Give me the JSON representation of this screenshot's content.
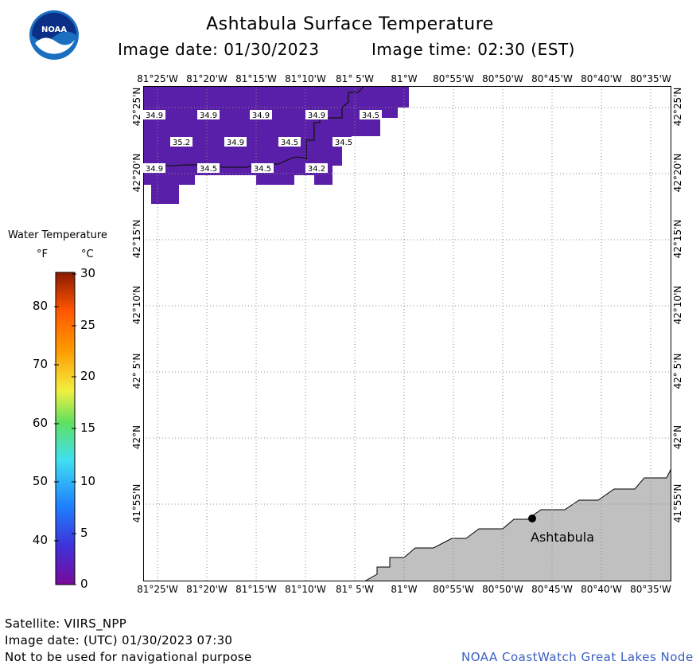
{
  "header": {
    "title": "Ashtabula Surface Temperature",
    "image_date": "Image date: 01/30/2023",
    "image_time": "Image time: 02:30 (EST)"
  },
  "logo": {
    "text": "NOAA",
    "colors": {
      "outer": "#1a6fc0",
      "inner": "#0b2f86"
    }
  },
  "map": {
    "lon_ticks": [
      "81°25'W",
      "81°20'W",
      "81°15'W",
      "81°10'W",
      "81° 5'W",
      "81°W",
      "80°55'W",
      "80°50'W",
      "80°45'W",
      "80°40'W",
      "80°35'W"
    ],
    "lat_ticks": [
      "42°25'N",
      "42°20'N",
      "42°15'N",
      "42°10'N",
      "42° 5'N",
      "42°N",
      "41°55'N"
    ],
    "city": "Ashtabula",
    "land_color": "#c0c0c0",
    "water_color": "#5a1fa8",
    "temperature_labels": [
      "34.9",
      "34.9",
      "34.9",
      "34.9",
      "34.5",
      "35.2",
      "34.9",
      "34.5",
      "34.5",
      "34.9",
      "34.5",
      "34.5",
      "34.2"
    ]
  },
  "legend": {
    "title": "Water Temperature",
    "unit_f": "°F",
    "unit_c": "°C",
    "f_ticks": [
      "80",
      "70",
      "60",
      "50",
      "40"
    ],
    "c_ticks": [
      "30",
      "25",
      "20",
      "15",
      "10",
      "5",
      "0"
    ],
    "colors": [
      "#6a0a9a",
      "#3b3be6",
      "#1f8fff",
      "#40e0f0",
      "#60e060",
      "#f0f040",
      "#ff9a00",
      "#ff5500",
      "#8a1a00"
    ]
  },
  "footer": {
    "satellite": "Satellite: VIIRS_NPP",
    "utc_date": "Image date: (UTC) 01/30/2023  07:30",
    "disclaimer": "Not to be used for navigational purpose",
    "credit": "NOAA CoastWatch Great Lakes Node",
    "credit_color": "#3a5fc0"
  }
}
